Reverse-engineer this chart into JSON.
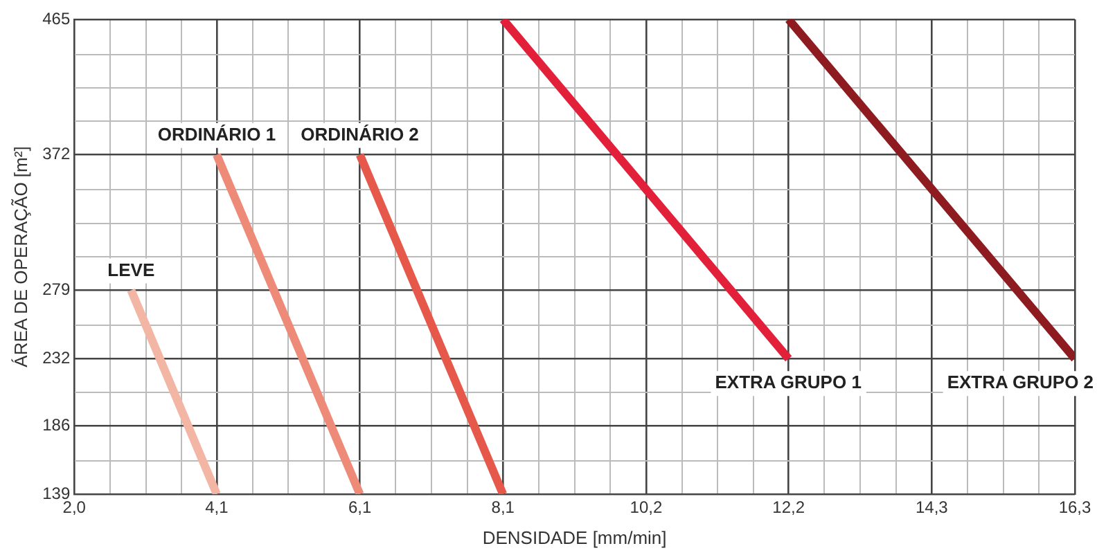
{
  "chart_data": {
    "type": "line",
    "xlabel": "DENSIDADE [mm/min]",
    "ylabel": "ÁREA DE OPERAÇÃO [m²]",
    "xlim": [
      2.04,
      16.3
    ],
    "ylim": [
      139,
      465
    ],
    "xticks": [
      {
        "value": 2.04,
        "label": "2,0"
      },
      {
        "value": 2.55,
        "label": null
      },
      {
        "value": 3.06,
        "label": null
      },
      {
        "value": 3.57,
        "label": null
      },
      {
        "value": 4.07,
        "label": "4,1"
      },
      {
        "value": 4.58,
        "label": null
      },
      {
        "value": 5.09,
        "label": null
      },
      {
        "value": 5.6,
        "label": null
      },
      {
        "value": 6.11,
        "label": "6,1"
      },
      {
        "value": 6.62,
        "label": null
      },
      {
        "value": 7.13,
        "label": null
      },
      {
        "value": 7.64,
        "label": null
      },
      {
        "value": 8.15,
        "label": "8,1"
      },
      {
        "value": 8.66,
        "label": null
      },
      {
        "value": 9.17,
        "label": null
      },
      {
        "value": 9.68,
        "label": null
      },
      {
        "value": 10.19,
        "label": "10,2"
      },
      {
        "value": 10.7,
        "label": null
      },
      {
        "value": 11.21,
        "label": null
      },
      {
        "value": 11.72,
        "label": null
      },
      {
        "value": 12.22,
        "label": "12,2"
      },
      {
        "value": 12.73,
        "label": null
      },
      {
        "value": 13.24,
        "label": null
      },
      {
        "value": 13.75,
        "label": null
      },
      {
        "value": 14.26,
        "label": "14,3"
      },
      {
        "value": 14.77,
        "label": null
      },
      {
        "value": 15.28,
        "label": null
      },
      {
        "value": 15.79,
        "label": null
      },
      {
        "value": 16.3,
        "label": "16,3"
      }
    ],
    "yticks": [
      139,
      {
        "value": 162,
        "label": null
      },
      186,
      {
        "value": 209,
        "label": null
      },
      232,
      {
        "value": 255,
        "label": null
      },
      279,
      {
        "value": 302,
        "label": null
      },
      {
        "value": 325,
        "label": null
      },
      {
        "value": 348,
        "label": null
      },
      372,
      {
        "value": 395,
        "label": null
      },
      {
        "value": 418,
        "label": null
      },
      {
        "value": 441,
        "label": null
      },
      465
    ],
    "grid": true,
    "legend": false,
    "marker": "none",
    "series": [
      {
        "name": "LEVE",
        "color": "#f4b6a4",
        "x": [
          2.85,
          4.07
        ],
        "values": [
          279,
          139
        ]
      },
      {
        "name": "ORDINÁRIO 1",
        "color": "#ee8a78",
        "x": [
          4.07,
          6.11
        ],
        "values": [
          372,
          139
        ]
      },
      {
        "name": "ORDINÁRIO 2",
        "color": "#e5584a",
        "x": [
          6.11,
          8.15
        ],
        "values": [
          372,
          139
        ]
      },
      {
        "name": "EXTRA GRUPO 1",
        "color": "#e3203a",
        "x": [
          8.15,
          12.22
        ],
        "values": [
          465,
          232
        ]
      },
      {
        "name": "EXTRA GRUPO 2",
        "color": "#8e1b1f",
        "x": [
          12.22,
          16.3
        ],
        "values": [
          465,
          232
        ]
      }
    ]
  }
}
